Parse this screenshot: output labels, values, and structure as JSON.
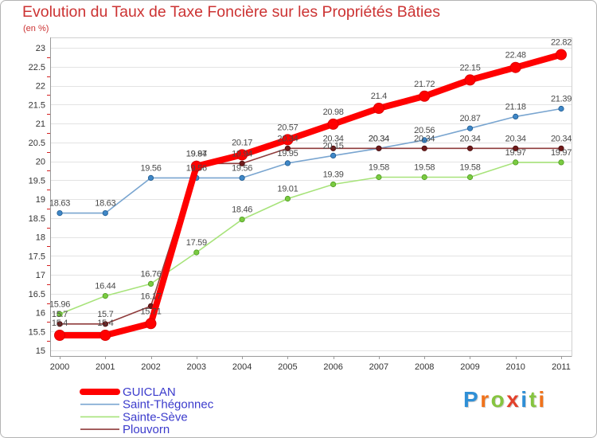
{
  "logo": {
    "text": "Proxiti",
    "letter_colors": [
      "#2f8fd6",
      "#f0731c",
      "#86c440",
      "#e2412b",
      "#2f8fd6",
      "#86c440",
      "#f0731c"
    ]
  },
  "colors": {
    "title": "#cc3333",
    "legend_text": "#3b3bcc",
    "axis_text": "#333333",
    "axis_line": "#9a9a9a",
    "value_label": "#4a4a4a",
    "grid": "#e3e3e3",
    "minor_tick": "#d42020"
  },
  "chart_data": {
    "type": "line",
    "title": "Evolution du Taux de Taxe Foncière sur les Propriétés Bâties",
    "ylabel": "(en %)",
    "x": [
      "2000",
      "2001",
      "2002",
      "2003",
      "2004",
      "2005",
      "2006",
      "2007",
      "2008",
      "2009",
      "2010",
      "2011"
    ],
    "ylim": [
      15,
      23
    ],
    "yticks": [
      15,
      15.5,
      16,
      16.5,
      17,
      17.5,
      18,
      18.5,
      19,
      19.5,
      20,
      20.5,
      21,
      21.5,
      22,
      22.5,
      23
    ],
    "grid": true,
    "legend_position": "bottom-left",
    "series": [
      {
        "name": "GUICLAN",
        "emphasis": true,
        "color": "#ff0000",
        "marker_fill": "#ff0000",
        "marker_stroke": "#dd0000",
        "values": [
          15.4,
          15.4,
          15.71,
          19.87,
          20.17,
          20.57,
          20.98,
          21.4,
          21.72,
          22.15,
          22.48,
          22.82
        ]
      },
      {
        "name": "Saint-Thégonnec",
        "emphasis": false,
        "color": "#79a5d0",
        "marker_fill": "#3f87c7",
        "marker_stroke": "#1f5a8f",
        "values": [
          18.63,
          18.63,
          19.56,
          19.56,
          19.56,
          19.95,
          20.15,
          20.34,
          20.56,
          20.87,
          21.18,
          21.39
        ]
      },
      {
        "name": "Sainte-Sève",
        "emphasis": false,
        "color": "#a7e37a",
        "marker_fill": "#7acb41",
        "marker_stroke": "#4f9a22",
        "values": [
          15.96,
          16.44,
          16.76,
          17.59,
          18.46,
          19.01,
          19.39,
          19.58,
          19.58,
          19.58,
          19.97,
          19.97
        ]
      },
      {
        "name": "Plouvorn",
        "emphasis": false,
        "color": "#8f3c3c",
        "marker_fill": "#6f1a1a",
        "marker_stroke": "#4a0d0d",
        "values": [
          15.7,
          15.7,
          16.17,
          19.94,
          19.94,
          20.34,
          20.34,
          20.34,
          20.34,
          20.34,
          20.34,
          20.34
        ]
      }
    ]
  }
}
